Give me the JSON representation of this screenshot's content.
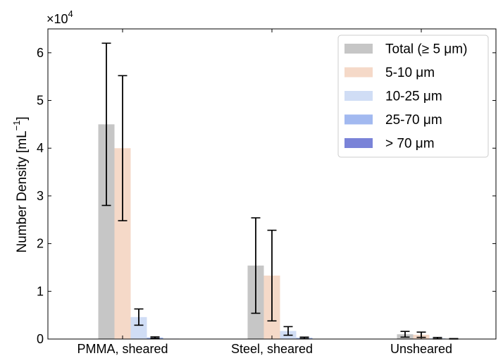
{
  "chart_data": {
    "type": "bar",
    "title": "",
    "xlabel": "",
    "ylabel": "Number Density [mL⁻¹]",
    "ylabel_main": "Number Density [mL",
    "ylabel_sup": "−1",
    "ylabel_close": "]",
    "y_multiplier_base": "×10",
    "y_multiplier_exp": "4",
    "y_scale_factor": 10000,
    "ylim": [
      0,
      65000
    ],
    "yticks": [
      0,
      10000,
      20000,
      30000,
      40000,
      50000,
      60000
    ],
    "ytick_labels": [
      "0",
      "1",
      "2",
      "3",
      "4",
      "5",
      "6"
    ],
    "categories": [
      "PMMA, sheared",
      "Steel, sheared",
      "Unsheared"
    ],
    "grid": false,
    "legend_position": "top-right",
    "series": [
      {
        "name": "Total (≥  5 μm)",
        "color": "#c6c6c6",
        "values": [
          45000,
          15400,
          1000
        ],
        "errors": [
          17000,
          10000,
          600
        ]
      },
      {
        "name": "5-10 μm",
        "color": "#f5d9c8",
        "values": [
          40000,
          13300,
          900
        ],
        "errors": [
          15200,
          9500,
          550
        ]
      },
      {
        "name": "10-25 μm",
        "color": "#d0ddf5",
        "values": [
          4600,
          1700,
          180
        ],
        "errors": [
          1700,
          900,
          150
        ]
      },
      {
        "name": "25-70 μm",
        "color": "#a2b9f0",
        "values": [
          300,
          250,
          50
        ],
        "errors": [
          150,
          150,
          40
        ]
      },
      {
        "name": "> 70 μm",
        "color": "#7a83d8",
        "values": [
          80,
          60,
          20
        ],
        "errors": [
          0,
          0,
          0
        ]
      }
    ]
  }
}
